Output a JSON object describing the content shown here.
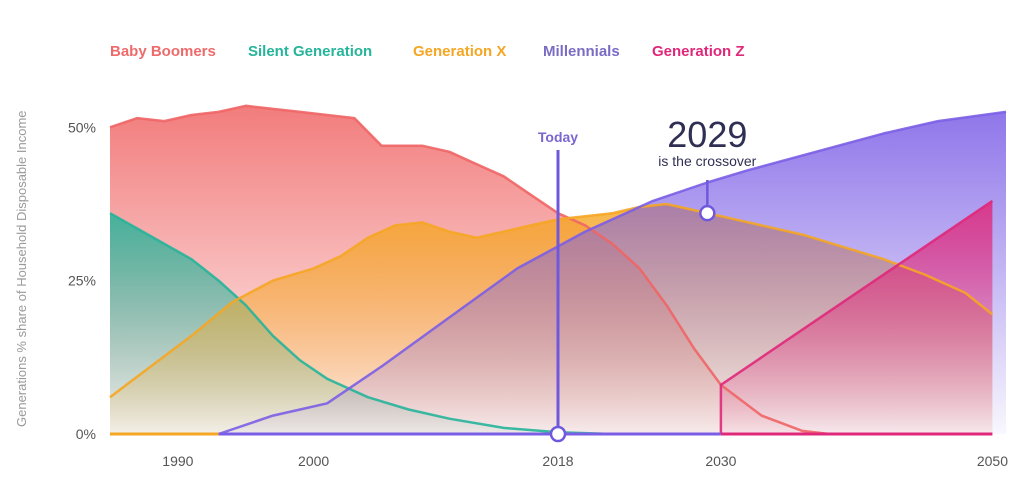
{
  "chart_data": {
    "type": "area",
    "title": "",
    "ylabel": "Generations % share of Household Disposable Income",
    "xlabel": "",
    "xlim": [
      1985,
      2051
    ],
    "ylim": [
      0,
      52
    ],
    "x_ticks": [
      {
        "value": 1990,
        "label": "1990"
      },
      {
        "value": 2000,
        "label": "2000"
      },
      {
        "value": 2018,
        "label": "2018"
      },
      {
        "value": 2030,
        "label": "2030"
      },
      {
        "value": 2050,
        "label": "2050"
      }
    ],
    "y_ticks": [
      {
        "value": 0,
        "label": "0%"
      },
      {
        "value": 25,
        "label": "25%"
      },
      {
        "value": 50,
        "label": "50%"
      }
    ],
    "series": [
      {
        "name": "Baby Boomers",
        "color": "#f06565",
        "points": [
          [
            1985,
            50
          ],
          [
            1987,
            51.5
          ],
          [
            1989,
            51
          ],
          [
            1991,
            52
          ],
          [
            1993,
            52.5
          ],
          [
            1995,
            53.5
          ],
          [
            1997,
            53
          ],
          [
            1999,
            52.5
          ],
          [
            2001,
            52
          ],
          [
            2003,
            51.5
          ],
          [
            2005,
            47
          ],
          [
            2008,
            47
          ],
          [
            2010,
            46
          ],
          [
            2012,
            44
          ],
          [
            2014,
            42
          ],
          [
            2016,
            39
          ],
          [
            2018,
            36
          ],
          [
            2020,
            34
          ],
          [
            2022,
            31
          ],
          [
            2024,
            27
          ],
          [
            2026,
            21
          ],
          [
            2028,
            14
          ],
          [
            2030,
            8
          ],
          [
            2033,
            3
          ],
          [
            2036,
            0.5
          ],
          [
            2038,
            0
          ]
        ]
      },
      {
        "name": "Silent Generation",
        "color": "#26b49a",
        "points": [
          [
            1985,
            36
          ],
          [
            1987,
            33.5
          ],
          [
            1989,
            31
          ],
          [
            1991,
            28.5
          ],
          [
            1993,
            25
          ],
          [
            1995,
            21
          ],
          [
            1997,
            16
          ],
          [
            1999,
            12
          ],
          [
            2001,
            9
          ],
          [
            2004,
            6
          ],
          [
            2007,
            4
          ],
          [
            2010,
            2.5
          ],
          [
            2014,
            1
          ],
          [
            2018,
            0.3
          ],
          [
            2022,
            0
          ]
        ]
      },
      {
        "name": "Generation X",
        "color": "#f5a623",
        "points": [
          [
            1985,
            6
          ],
          [
            1988,
            11
          ],
          [
            1991,
            16
          ],
          [
            1994,
            21.5
          ],
          [
            1997,
            25
          ],
          [
            2000,
            27
          ],
          [
            2002,
            29
          ],
          [
            2004,
            32
          ],
          [
            2006,
            34
          ],
          [
            2008,
            34.5
          ],
          [
            2010,
            33
          ],
          [
            2012,
            32
          ],
          [
            2014,
            33
          ],
          [
            2016,
            34
          ],
          [
            2018,
            35
          ],
          [
            2020,
            35.5
          ],
          [
            2022,
            36
          ],
          [
            2024,
            37
          ],
          [
            2026,
            37.5
          ],
          [
            2028,
            36.5
          ],
          [
            2030,
            35.5
          ],
          [
            2033,
            34
          ],
          [
            2036,
            32.5
          ],
          [
            2039,
            30.5
          ],
          [
            2042,
            28.5
          ],
          [
            2045,
            26
          ],
          [
            2048,
            23
          ],
          [
            2050,
            19.5
          ]
        ]
      },
      {
        "name": "Millennials",
        "color": "#7b5ee6",
        "points": [
          [
            1993,
            0
          ],
          [
            1997,
            3
          ],
          [
            1999,
            4
          ],
          [
            2001,
            5
          ],
          [
            2005,
            11
          ],
          [
            2010,
            19
          ],
          [
            2015,
            27
          ],
          [
            2020,
            33
          ],
          [
            2025,
            38
          ],
          [
            2029,
            41
          ],
          [
            2032,
            43
          ],
          [
            2037,
            46
          ],
          [
            2042,
            49
          ],
          [
            2046,
            51
          ],
          [
            2051,
            52.5
          ]
        ]
      },
      {
        "name": "Generation Z",
        "color": "#e0287a",
        "points": [
          [
            2030,
            0
          ],
          [
            2030,
            8
          ],
          [
            2050,
            38
          ]
        ]
      }
    ],
    "annotations": {
      "today_label": "Today",
      "today_year": 2018,
      "crossover_year": "2029",
      "crossover_text": "is the crossover",
      "crossover_x": 2029,
      "crossover_y": 36
    }
  }
}
